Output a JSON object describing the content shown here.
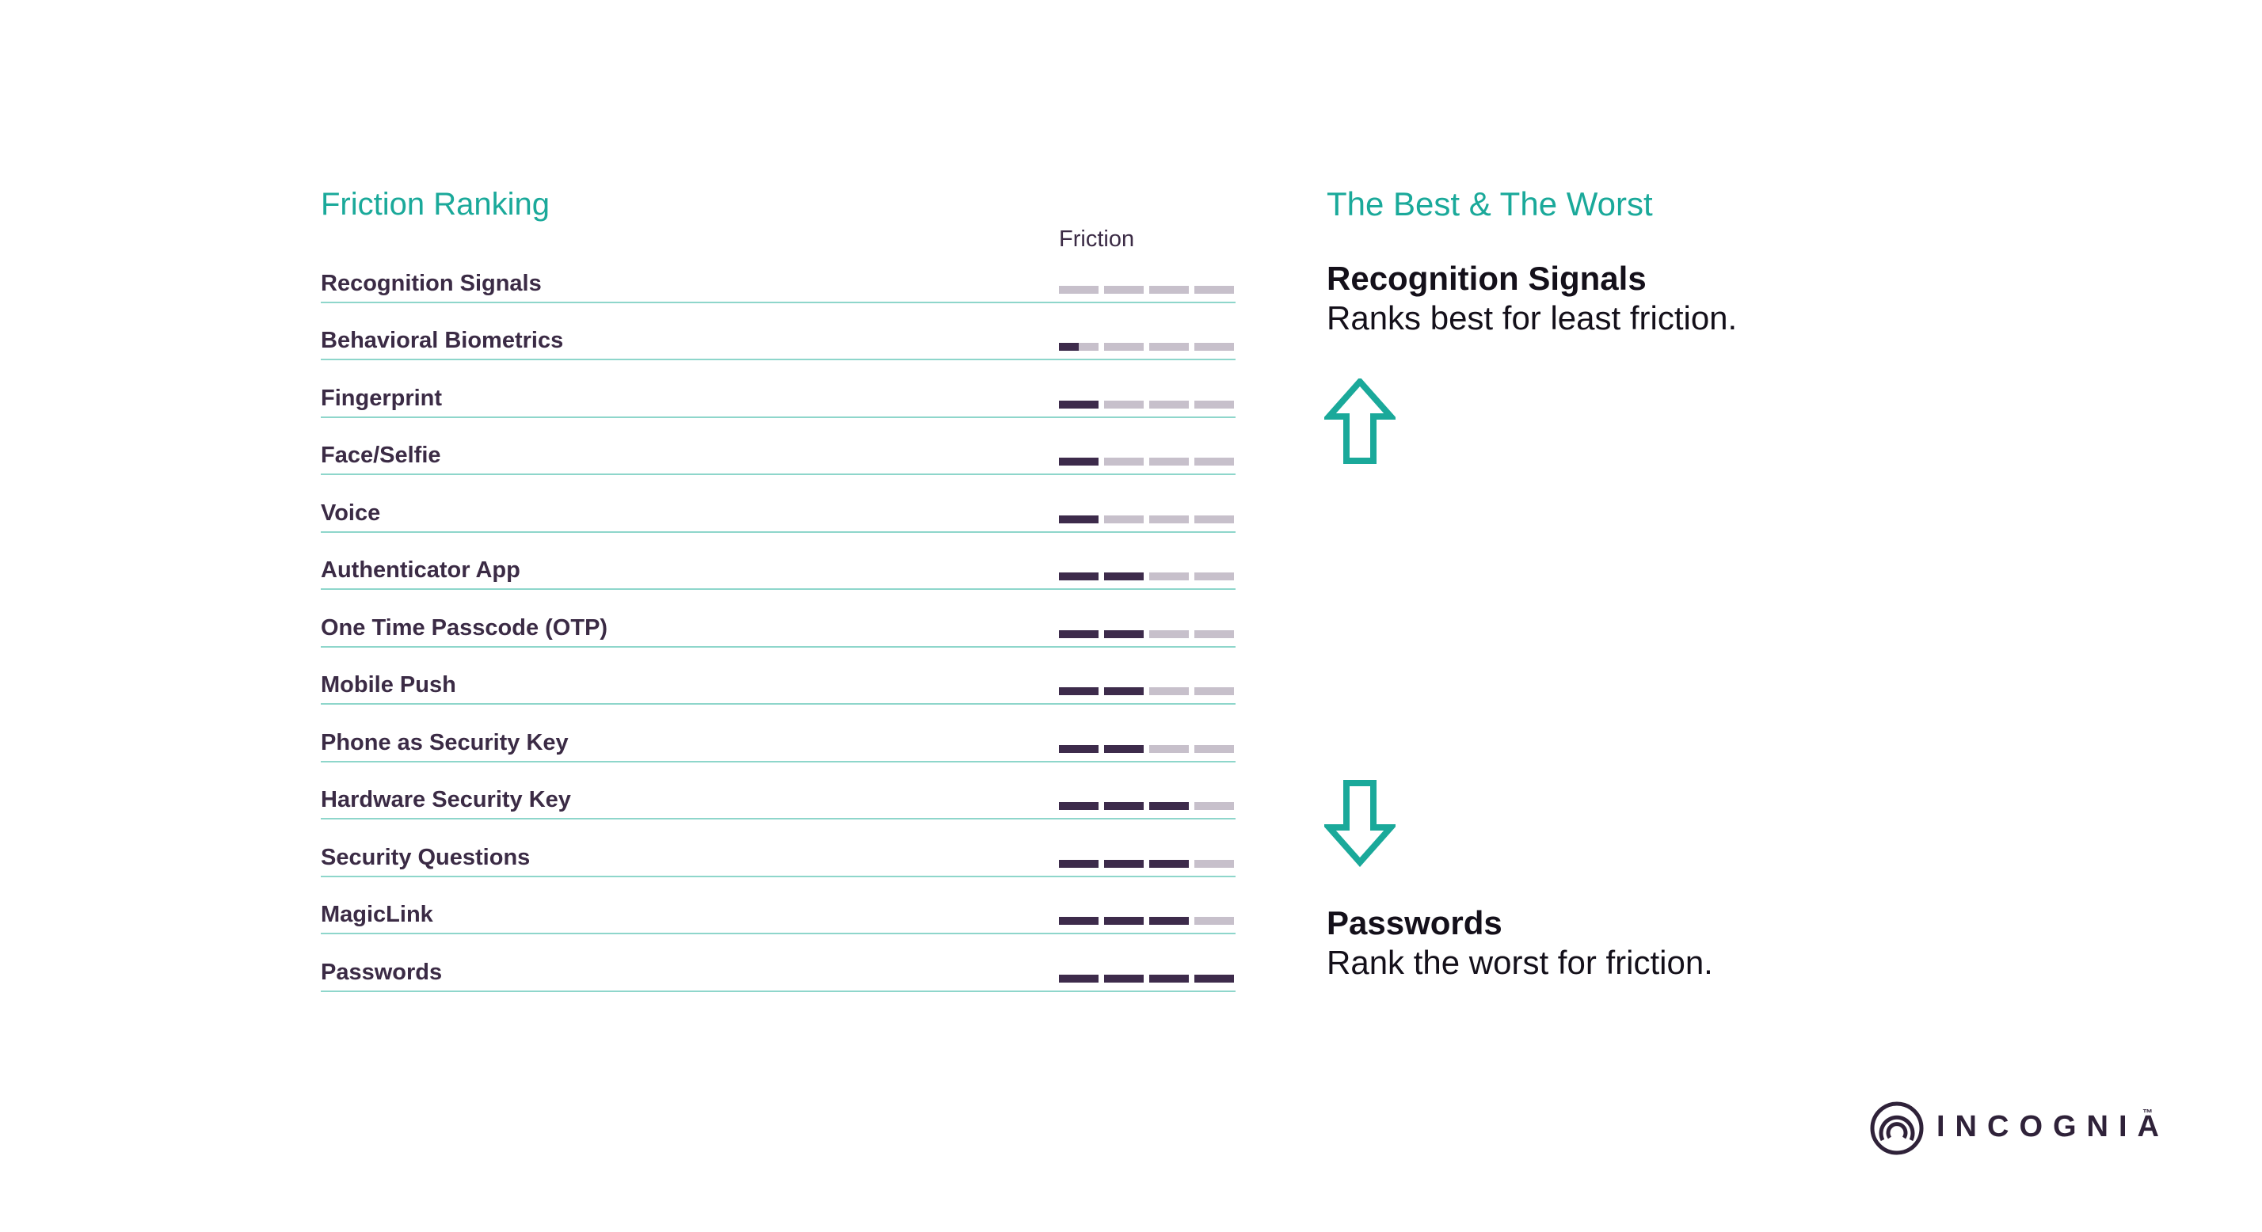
{
  "left_panel": {
    "title": "Friction Ranking"
  },
  "right_panel": {
    "title": "The Best & The Worst",
    "best": {
      "name": "Recognition Signals",
      "text": "Ranks best for least friction."
    },
    "worst": {
      "name": "Passwords",
      "text": "Rank the worst for friction."
    }
  },
  "logo": {
    "text": "INCOGNIA",
    "tm": "™"
  },
  "colors": {
    "accent": "#1aa99a",
    "filled": "#3d2b4b",
    "empty": "#c7c0cb",
    "text": "#3b2b45"
  },
  "chart_data": {
    "type": "table",
    "column_header": "Friction",
    "max_level": 4,
    "rows": [
      {
        "label": "Recognition Signals",
        "friction": 0
      },
      {
        "label": "Behavioral Biometrics",
        "friction": 0.5
      },
      {
        "label": "Fingerprint",
        "friction": 1
      },
      {
        "label": "Face/Selfie",
        "friction": 1
      },
      {
        "label": "Voice",
        "friction": 1
      },
      {
        "label": "Authenticator App",
        "friction": 2
      },
      {
        "label": "One Time Passcode (OTP)",
        "friction": 2
      },
      {
        "label": "Mobile Push",
        "friction": 2
      },
      {
        "label": "Phone as Security Key",
        "friction": 2
      },
      {
        "label": "Hardware Security Key",
        "friction": 3
      },
      {
        "label": "Security Questions",
        "friction": 3
      },
      {
        "label": "MagicLink",
        "friction": 3
      },
      {
        "label": "Passwords",
        "friction": 4
      }
    ]
  }
}
